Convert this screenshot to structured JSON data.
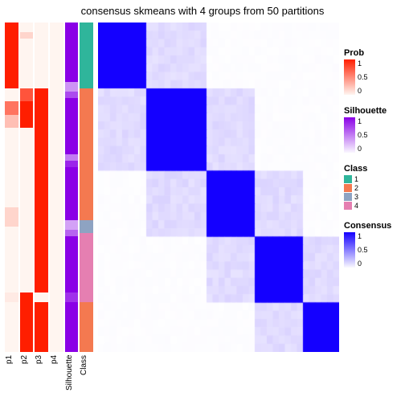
{
  "title": "consensus skmeans with 4 groups from 50 partitions",
  "dimensions": {
    "rows": 40,
    "cols": 40
  },
  "blocks": [
    {
      "start": 0,
      "end": 8
    },
    {
      "start": 8,
      "end": 18
    },
    {
      "start": 18,
      "end": 26
    },
    {
      "start": 26,
      "end": 34
    },
    {
      "start": 34,
      "end": 40
    }
  ],
  "heatmap_style": {
    "diag_color": "#1400ff",
    "near_color": "#ccc2ff",
    "far_color": "#faf9ff",
    "bg_color": "#ffffff"
  },
  "annotation_columns": [
    {
      "key": "p1",
      "label": "p1",
      "type": "prob",
      "segments": [
        {
          "frac": 0.2,
          "val": 1.0
        },
        {
          "frac": 0.04,
          "val": 0.0
        },
        {
          "frac": 0.04,
          "val": 0.6
        },
        {
          "frac": 0.04,
          "val": 0.25
        },
        {
          "frac": 0.24,
          "val": 0.0
        },
        {
          "frac": 0.06,
          "val": 0.15
        },
        {
          "frac": 0.2,
          "val": 0.0
        },
        {
          "frac": 0.03,
          "val": 0.05
        },
        {
          "frac": 0.15,
          "val": 0.0
        }
      ]
    },
    {
      "key": "p2",
      "label": "p2",
      "type": "prob",
      "segments": [
        {
          "frac": 0.03,
          "val": 0.0
        },
        {
          "frac": 0.02,
          "val": 0.15
        },
        {
          "frac": 0.15,
          "val": 0.0
        },
        {
          "frac": 0.04,
          "val": 0.75
        },
        {
          "frac": 0.08,
          "val": 1.0
        },
        {
          "frac": 0.5,
          "val": 0.0
        },
        {
          "frac": 0.18,
          "val": 1.0
        }
      ]
    },
    {
      "key": "p3",
      "label": "p3",
      "type": "prob",
      "segments": [
        {
          "frac": 0.2,
          "val": 0.0
        },
        {
          "frac": 0.62,
          "val": 1.0
        },
        {
          "frac": 0.03,
          "val": 0.0
        },
        {
          "frac": 0.15,
          "val": 1.0
        }
      ]
    },
    {
      "key": "p4",
      "label": "p4",
      "type": "prob",
      "segments": [
        {
          "frac": 1.0,
          "val": 0.0
        }
      ]
    },
    {
      "key": "silhouette",
      "label": "Silhouette",
      "type": "silhouette",
      "segments": [
        {
          "frac": 0.18,
          "val": 1.0
        },
        {
          "frac": 0.03,
          "val": 0.4
        },
        {
          "frac": 0.02,
          "val": 0.7
        },
        {
          "frac": 0.17,
          "val": 1.0
        },
        {
          "frac": 0.02,
          "val": 0.5
        },
        {
          "frac": 0.02,
          "val": 0.85
        },
        {
          "frac": 0.16,
          "val": 1.0
        },
        {
          "frac": 0.03,
          "val": 0.35
        },
        {
          "frac": 0.02,
          "val": 0.6
        },
        {
          "frac": 0.17,
          "val": 1.0
        },
        {
          "frac": 0.03,
          "val": 0.8
        },
        {
          "frac": 0.15,
          "val": 1.0
        }
      ]
    },
    {
      "key": "class",
      "label": "Class",
      "type": "class",
      "segments": [
        {
          "frac": 0.2,
          "class": 1
        },
        {
          "frac": 0.4,
          "class": 2
        },
        {
          "frac": 0.04,
          "class": 3
        },
        {
          "frac": 0.21,
          "class": 4
        },
        {
          "frac": 0.15,
          "class": 2
        }
      ]
    }
  ],
  "scales": {
    "prob": {
      "low": "#fff5f0",
      "high": "#ff1e00",
      "title": "Prob",
      "ticks": [
        "1",
        "0.5",
        "0"
      ]
    },
    "silhouette": {
      "low": "#faf7ff",
      "high": "#8a00e6",
      "title": "Silhouette",
      "ticks": [
        "1",
        "0.5",
        "0"
      ]
    },
    "consensus": {
      "low": "#faf9ff",
      "high": "#1400ff",
      "title": "Consensus",
      "ticks": [
        "1",
        "0.5",
        "0"
      ]
    }
  },
  "class_legend": {
    "title": "Class",
    "items": [
      {
        "label": "1",
        "color": "#2fb59b"
      },
      {
        "label": "2",
        "color": "#f47950"
      },
      {
        "label": "3",
        "color": "#8ea3c2"
      },
      {
        "label": "4",
        "color": "#e57fb1"
      }
    ]
  }
}
